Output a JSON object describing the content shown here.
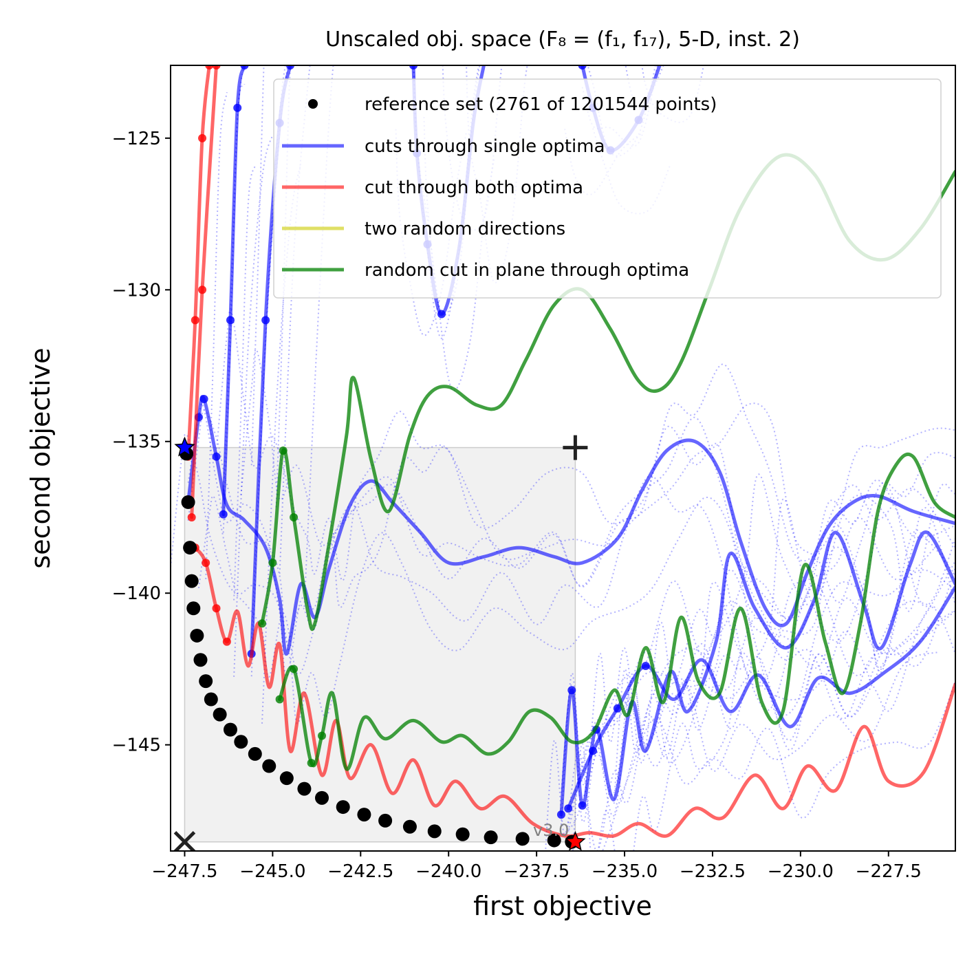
{
  "chart_data": {
    "type": "line",
    "title": "Unscaled obj. space (F₈ = (f₁, f₁₇), 5-D, inst. 2)",
    "xlabel": "first objective",
    "ylabel": "second objective",
    "xlim": [
      -247.9,
      -225.6
    ],
    "ylim": [
      -148.5,
      -122.6
    ],
    "xticks": [
      -247.5,
      -245.0,
      -242.5,
      -240.0,
      -237.5,
      -235.0,
      -232.5,
      -230.0,
      -227.5
    ],
    "xtick_labels": [
      "−247.5",
      "−245.0",
      "−242.5",
      "−240.0",
      "−237.5",
      "−235.0",
      "−232.5",
      "−230.0",
      "−227.5"
    ],
    "yticks": [
      -145,
      -140,
      -135,
      -130,
      -125
    ],
    "ytick_labels": [
      "−145",
      "−140",
      "−135",
      "−130",
      "−125"
    ],
    "grid": false,
    "legend_position": "top-right",
    "version_label": "v3.0",
    "reference_region": {
      "x": [
        -247.5,
        -236.4
      ],
      "y": [
        -148.2,
        -135.2
      ]
    },
    "markers": {
      "ideal_x": [
        -247.5,
        -148.2
      ],
      "nadir_plus": [
        -236.4,
        -135.2
      ],
      "optimum_f1": [
        -247.5,
        -135.2
      ],
      "optimum_f2": [
        -236.4,
        -148.2
      ]
    },
    "series": [
      {
        "name": "reference set (2761 of 1201544 points)",
        "type": "scatter",
        "color": "#000000",
        "points": [
          [
            -247.45,
            -135.4
          ],
          [
            -247.4,
            -137.0
          ],
          [
            -247.35,
            -138.5
          ],
          [
            -247.3,
            -139.6
          ],
          [
            -247.25,
            -140.5
          ],
          [
            -247.15,
            -141.4
          ],
          [
            -247.05,
            -142.2
          ],
          [
            -246.9,
            -142.9
          ],
          [
            -246.75,
            -143.5
          ],
          [
            -246.5,
            -144.0
          ],
          [
            -246.2,
            -144.5
          ],
          [
            -245.9,
            -144.9
          ],
          [
            -245.5,
            -145.3
          ],
          [
            -245.1,
            -145.7
          ],
          [
            -244.6,
            -146.1
          ],
          [
            -244.1,
            -146.45
          ],
          [
            -243.6,
            -146.75
          ],
          [
            -243.0,
            -147.05
          ],
          [
            -242.4,
            -147.3
          ],
          [
            -241.8,
            -147.5
          ],
          [
            -241.1,
            -147.7
          ],
          [
            -240.4,
            -147.85
          ],
          [
            -239.6,
            -147.95
          ],
          [
            -238.8,
            -148.05
          ],
          [
            -237.9,
            -148.1
          ],
          [
            -237.0,
            -148.15
          ],
          [
            -236.5,
            -148.2
          ]
        ]
      },
      {
        "name": "cuts through single optima",
        "type": "line",
        "color": "#0000ff",
        "lines": [
          [
            [
              -246.4,
              -137.4
            ],
            [
              -246.2,
              -131.0
            ],
            [
              -246.0,
              -124.0
            ],
            [
              -245.8,
              -122.6
            ]
          ],
          [
            [
              -247.4,
              -137.0
            ],
            [
              -247.1,
              -134.2
            ],
            [
              -246.95,
              -133.6
            ],
            [
              -246.6,
              -135.5
            ],
            [
              -246.3,
              -137.1
            ],
            [
              -245.8,
              -137.6
            ],
            [
              -245.2,
              -138.5
            ],
            [
              -244.8,
              -140.2
            ],
            [
              -244.6,
              -142.0
            ],
            [
              -244.2,
              -139.7
            ],
            [
              -243.8,
              -140.8
            ],
            [
              -243.4,
              -139.2
            ],
            [
              -242.8,
              -137.1
            ],
            [
              -242.2,
              -136.3
            ],
            [
              -241.6,
              -137.0
            ],
            [
              -240.8,
              -138.0
            ],
            [
              -240.0,
              -139.0
            ],
            [
              -239.0,
              -138.8
            ],
            [
              -238.0,
              -138.5
            ],
            [
              -237.0,
              -138.8
            ],
            [
              -236.2,
              -139.0
            ],
            [
              -235.2,
              -138.2
            ],
            [
              -234.5,
              -136.6
            ],
            [
              -233.8,
              -135.3
            ],
            [
              -233.0,
              -135.0
            ],
            [
              -232.3,
              -136.0
            ],
            [
              -231.7,
              -138.3
            ],
            [
              -231.0,
              -140.5
            ],
            [
              -230.4,
              -141.0
            ],
            [
              -229.8,
              -139.3
            ],
            [
              -229.2,
              -137.8
            ],
            [
              -228.5,
              -137.0
            ],
            [
              -227.8,
              -136.8
            ],
            [
              -226.8,
              -137.3
            ],
            [
              -225.6,
              -137.7
            ]
          ],
          [
            [
              -245.6,
              -142.0
            ],
            [
              -245.2,
              -131.0
            ],
            [
              -244.8,
              -124.5
            ],
            [
              -244.5,
              -122.6
            ]
          ],
          [
            [
              -241.0,
              -122.6
            ],
            [
              -240.9,
              -125.5
            ],
            [
              -240.6,
              -128.5
            ],
            [
              -240.2,
              -130.8
            ],
            [
              -239.7,
              -128.6
            ],
            [
              -239.3,
              -124.5
            ],
            [
              -239.0,
              -122.6
            ]
          ],
          [
            [
              -236.2,
              -122.6
            ],
            [
              -235.9,
              -124.0
            ],
            [
              -235.4,
              -125.4
            ],
            [
              -234.6,
              -124.4
            ],
            [
              -234.0,
              -122.6
            ]
          ],
          [
            [
              -236.8,
              -147.3
            ],
            [
              -236.5,
              -143.2
            ],
            [
              -236.2,
              -147.0
            ],
            [
              -235.8,
              -144.5
            ],
            [
              -235.3,
              -146.8
            ],
            [
              -234.8,
              -143.6
            ],
            [
              -234.4,
              -145.2
            ],
            [
              -233.7,
              -142.6
            ],
            [
              -233.2,
              -143.9
            ],
            [
              -232.4,
              -141.6
            ],
            [
              -232.0,
              -138.7
            ],
            [
              -231.3,
              -140.5
            ],
            [
              -230.4,
              -141.8
            ],
            [
              -229.6,
              -140.2
            ],
            [
              -229.0,
              -138.0
            ],
            [
              -228.2,
              -140.4
            ],
            [
              -227.7,
              -141.8
            ],
            [
              -226.9,
              -139.1
            ],
            [
              -226.4,
              -138.0
            ],
            [
              -225.6,
              -139.7
            ]
          ],
          [
            [
              -236.6,
              -147.1
            ],
            [
              -235.9,
              -145.2
            ],
            [
              -235.2,
              -143.8
            ],
            [
              -234.4,
              -142.4
            ],
            [
              -233.6,
              -143.5
            ],
            [
              -232.8,
              -142.2
            ],
            [
              -232.0,
              -143.9
            ],
            [
              -231.2,
              -142.7
            ],
            [
              -230.3,
              -144.4
            ],
            [
              -229.5,
              -142.8
            ],
            [
              -228.6,
              -143.3
            ],
            [
              -227.6,
              -142.6
            ],
            [
              -226.6,
              -141.6
            ],
            [
              -225.6,
              -139.8
            ]
          ]
        ]
      },
      {
        "name": "cut through both optima",
        "type": "line",
        "color": "#ff0000",
        "lines": [
          [
            [
              -247.4,
              -135.5
            ],
            [
              -247.2,
              -131.0
            ],
            [
              -247.0,
              -125.0
            ],
            [
              -246.8,
              -122.6
            ]
          ],
          [
            [
              -247.3,
              -137.5
            ],
            [
              -247.0,
              -130.0
            ],
            [
              -246.6,
              -122.6
            ]
          ],
          [
            [
              -247.2,
              -138.5
            ],
            [
              -246.9,
              -139.0
            ],
            [
              -246.6,
              -140.5
            ],
            [
              -246.3,
              -141.6
            ],
            [
              -246.0,
              -140.6
            ],
            [
              -245.7,
              -142.4
            ],
            [
              -245.4,
              -141.0
            ],
            [
              -245.1,
              -143.1
            ],
            [
              -244.8,
              -141.7
            ],
            [
              -244.5,
              -145.2
            ],
            [
              -244.1,
              -143.3
            ],
            [
              -243.6,
              -146.0
            ],
            [
              -243.2,
              -144.2
            ],
            [
              -242.8,
              -146.1
            ],
            [
              -242.2,
              -145.0
            ],
            [
              -241.6,
              -146.6
            ],
            [
              -241.0,
              -145.5
            ],
            [
              -240.4,
              -147.0
            ],
            [
              -239.8,
              -146.2
            ],
            [
              -239.1,
              -147.1
            ],
            [
              -238.4,
              -146.7
            ],
            [
              -237.6,
              -147.6
            ],
            [
              -236.7,
              -148.0
            ],
            [
              -236.0,
              -147.9
            ],
            [
              -235.3,
              -148.0
            ],
            [
              -234.6,
              -147.6
            ],
            [
              -233.8,
              -148.0
            ],
            [
              -233.0,
              -147.1
            ],
            [
              -232.2,
              -147.4
            ],
            [
              -231.3,
              -146.0
            ],
            [
              -230.5,
              -147.1
            ],
            [
              -229.8,
              -145.7
            ],
            [
              -229.0,
              -146.5
            ],
            [
              -228.2,
              -144.4
            ],
            [
              -227.5,
              -146.2
            ],
            [
              -226.5,
              -145.9
            ],
            [
              -225.6,
              -143.0
            ]
          ]
        ]
      },
      {
        "name": "two random directions",
        "type": "line",
        "color": "#cccc00",
        "lines": []
      },
      {
        "name": "random cut in plane through optima",
        "type": "line",
        "color": "#008000",
        "lines": [
          [
            [
              -245.3,
              -141.0
            ],
            [
              -245.0,
              -139.0
            ],
            [
              -244.7,
              -135.3
            ],
            [
              -244.4,
              -137.5
            ],
            [
              -244.0,
              -140.6
            ],
            [
              -243.8,
              -141.0
            ],
            [
              -243.4,
              -138.4
            ],
            [
              -242.9,
              -134.8
            ],
            [
              -242.7,
              -132.9
            ],
            [
              -242.2,
              -135.6
            ],
            [
              -241.7,
              -137.3
            ],
            [
              -241.1,
              -134.8
            ],
            [
              -240.6,
              -133.5
            ],
            [
              -240.0,
              -133.2
            ],
            [
              -239.2,
              -133.8
            ],
            [
              -238.5,
              -133.8
            ],
            [
              -237.8,
              -132.3
            ],
            [
              -237.0,
              -130.5
            ],
            [
              -236.2,
              -130.0
            ],
            [
              -235.4,
              -131.3
            ],
            [
              -234.6,
              -133.0
            ],
            [
              -234.0,
              -133.3
            ],
            [
              -233.4,
              -132.4
            ],
            [
              -232.6,
              -130.0
            ],
            [
              -231.7,
              -127.3
            ],
            [
              -230.6,
              -125.6
            ],
            [
              -229.6,
              -126.2
            ],
            [
              -228.6,
              -128.4
            ],
            [
              -227.6,
              -129.0
            ],
            [
              -226.6,
              -128.0
            ],
            [
              -225.6,
              -126.1
            ]
          ],
          [
            [
              -244.8,
              -143.5
            ],
            [
              -244.4,
              -142.5
            ],
            [
              -243.9,
              -145.6
            ],
            [
              -243.6,
              -144.7
            ],
            [
              -243.3,
              -143.3
            ],
            [
              -242.9,
              -145.8
            ],
            [
              -242.4,
              -144.1
            ],
            [
              -241.8,
              -144.8
            ],
            [
              -241.0,
              -144.2
            ],
            [
              -240.2,
              -144.9
            ],
            [
              -239.6,
              -144.7
            ],
            [
              -238.9,
              -145.3
            ],
            [
              -238.3,
              -144.9
            ],
            [
              -237.7,
              -143.9
            ],
            [
              -237.1,
              -144.1
            ],
            [
              -236.5,
              -144.9
            ],
            [
              -235.9,
              -144.6
            ],
            [
              -235.3,
              -143.2
            ],
            [
              -234.9,
              -144.0
            ],
            [
              -234.4,
              -141.8
            ],
            [
              -233.9,
              -143.6
            ],
            [
              -233.4,
              -140.8
            ],
            [
              -232.9,
              -142.9
            ],
            [
              -232.3,
              -143.3
            ],
            [
              -231.7,
              -140.5
            ],
            [
              -231.1,
              -143.6
            ],
            [
              -230.5,
              -143.9
            ],
            [
              -229.9,
              -139.1
            ],
            [
              -229.3,
              -141.6
            ],
            [
              -228.8,
              -143.3
            ],
            [
              -228.3,
              -141.0
            ],
            [
              -227.8,
              -137.3
            ],
            [
              -227.3,
              -135.8
            ],
            [
              -226.8,
              -135.5
            ],
            [
              -226.2,
              -137.0
            ],
            [
              -225.6,
              -137.5
            ]
          ]
        ]
      }
    ]
  }
}
